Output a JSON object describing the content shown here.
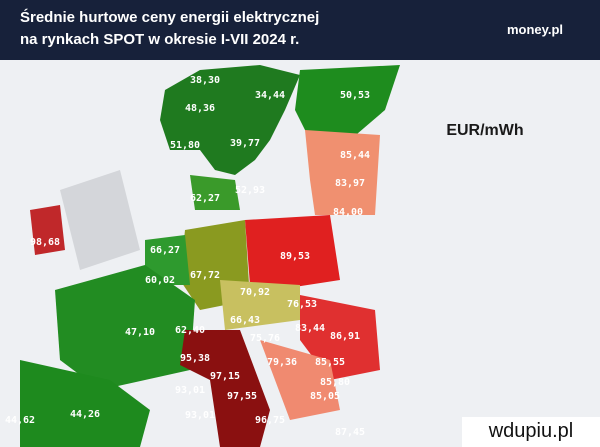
{
  "header": {
    "title": [
      "Średnie hurtowe ceny energii elektrycznej",
      "na rynkach SPOT w okresie I-VII 2024 r."
    ],
    "logo": "money.pl"
  },
  "unit": "EUR/mWh",
  "labels": [
    "38,30",
    "34,44",
    "50,53",
    "48,36",
    "39,77",
    "51,80",
    "85,44",
    "83,97",
    "84,00",
    "62,27",
    "52,93",
    "98,68",
    "66,27",
    "60,02",
    "67,72",
    "89,53",
    "70,92",
    "76,53",
    "66,43",
    "83,44",
    "86,91",
    "47,10",
    "62,40",
    "75,76",
    "95,38",
    "79,36",
    "85,55",
    "97,15",
    "85,80",
    "93,01",
    "97,55",
    "85,05",
    "44,62",
    "44,26",
    "93,01",
    "96,75",
    "87,45"
  ],
  "watermark": "wdupiu.pl"
}
